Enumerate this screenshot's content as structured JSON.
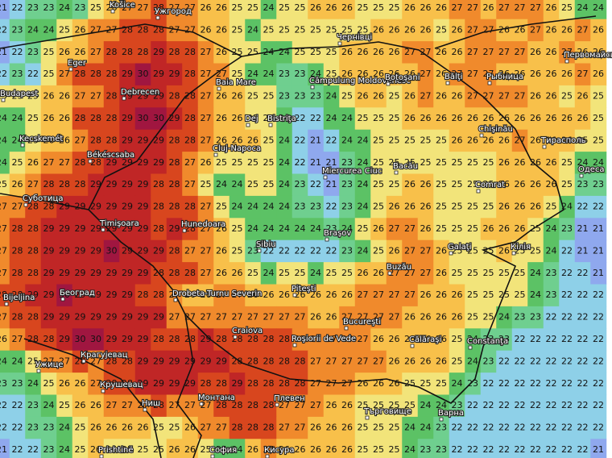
{
  "map": {
    "color_scale": [
      {
        "value": 20,
        "color": "#8c7ad8"
      },
      {
        "value": 21,
        "color": "#8fa8ee"
      },
      {
        "value": 22,
        "color": "#8ed0e8"
      },
      {
        "value": 23,
        "color": "#6fcf8f"
      },
      {
        "value": 24,
        "color": "#5cc265"
      },
      {
        "value": 25,
        "color": "#f2e47a"
      },
      {
        "value": 26,
        "color": "#f8c04a"
      },
      {
        "value": 27,
        "color": "#f08a2c"
      },
      {
        "value": 28,
        "color": "#d8461e"
      },
      {
        "value": 29,
        "color": "#c02626"
      },
      {
        "value": 30,
        "color": "#a01640"
      }
    ],
    "rows": [
      [
        21,
        22,
        23,
        23,
        24,
        23,
        25,
        26,
        27,
        27,
        28,
        27,
        27,
        26,
        26,
        25,
        25,
        24,
        25,
        25,
        26,
        26,
        26,
        25,
        25,
        25,
        26,
        26,
        26,
        27,
        27,
        26,
        27,
        27,
        27,
        26,
        25,
        24,
        24
      ],
      [
        22,
        23,
        24,
        24,
        25,
        26,
        27,
        27,
        28,
        28,
        28,
        27,
        27,
        26,
        26,
        25,
        24,
        25,
        25,
        25,
        25,
        25,
        25,
        25,
        26,
        26,
        26,
        26,
        25,
        26,
        27,
        27,
        26,
        26,
        27,
        26,
        26,
        27,
        26
      ],
      [
        21,
        22,
        23,
        25,
        26,
        26,
        27,
        28,
        28,
        28,
        29,
        28,
        28,
        27,
        26,
        25,
        25,
        24,
        24,
        25,
        25,
        25,
        26,
        26,
        26,
        26,
        27,
        27,
        26,
        26,
        27,
        27,
        27,
        27,
        26,
        26,
        27,
        26,
        26
      ],
      [
        22,
        23,
        22,
        25,
        27,
        28,
        28,
        28,
        29,
        30,
        29,
        29,
        28,
        27,
        27,
        25,
        24,
        24,
        23,
        23,
        24,
        25,
        26,
        26,
        26,
        26,
        26,
        27,
        26,
        27,
        27,
        27,
        26,
        26,
        26,
        26,
        26,
        27,
        26
      ],
      [
        25,
        25,
        25,
        26,
        26,
        27,
        27,
        28,
        29,
        29,
        29,
        28,
        28,
        27,
        26,
        26,
        25,
        25,
        23,
        23,
        23,
        24,
        25,
        26,
        26,
        25,
        26,
        27,
        26,
        26,
        27,
        27,
        27,
        27,
        26,
        26,
        25,
        26,
        25
      ],
      [
        24,
        24,
        25,
        26,
        26,
        28,
        28,
        28,
        29,
        30,
        30,
        29,
        28,
        27,
        26,
        26,
        25,
        25,
        24,
        22,
        22,
        24,
        24,
        25,
        25,
        25,
        26,
        26,
        26,
        26,
        26,
        26,
        26,
        26,
        26,
        26,
        26,
        26,
        25
      ],
      [
        24,
        24,
        25,
        26,
        26,
        27,
        28,
        28,
        29,
        29,
        29,
        28,
        28,
        27,
        26,
        26,
        26,
        25,
        24,
        22,
        21,
        22,
        24,
        24,
        25,
        25,
        25,
        25,
        25,
        26,
        26,
        26,
        26,
        27,
        26,
        26,
        26,
        25,
        25
      ],
      [
        24,
        25,
        26,
        27,
        27,
        28,
        28,
        29,
        29,
        29,
        29,
        28,
        27,
        26,
        25,
        25,
        25,
        25,
        24,
        22,
        21,
        21,
        23,
        24,
        25,
        25,
        25,
        25,
        25,
        25,
        25,
        25,
        26,
        26,
        26,
        26,
        25,
        24,
        24
      ],
      [
        25,
        26,
        27,
        28,
        28,
        28,
        29,
        29,
        29,
        29,
        28,
        28,
        27,
        25,
        24,
        24,
        25,
        25,
        24,
        23,
        22,
        21,
        23,
        24,
        25,
        25,
        26,
        26,
        25,
        25,
        25,
        25,
        26,
        26,
        26,
        26,
        25,
        23,
        23
      ],
      [
        27,
        27,
        28,
        28,
        29,
        29,
        29,
        29,
        29,
        29,
        28,
        28,
        28,
        27,
        25,
        24,
        24,
        24,
        24,
        23,
        23,
        22,
        23,
        24,
        25,
        26,
        26,
        26,
        25,
        25,
        25,
        25,
        26,
        26,
        26,
        25,
        24,
        22,
        22
      ],
      [
        27,
        28,
        28,
        29,
        29,
        29,
        29,
        29,
        29,
        29,
        28,
        29,
        28,
        27,
        26,
        25,
        24,
        24,
        24,
        24,
        24,
        23,
        24,
        25,
        26,
        27,
        27,
        26,
        25,
        25,
        25,
        26,
        26,
        26,
        25,
        24,
        23,
        21,
        21
      ],
      [
        27,
        28,
        28,
        29,
        29,
        29,
        29,
        30,
        29,
        29,
        29,
        28,
        27,
        27,
        26,
        25,
        23,
        22,
        22,
        22,
        22,
        22,
        23,
        24,
        25,
        26,
        27,
        27,
        26,
        25,
        25,
        25,
        26,
        25,
        25,
        24,
        22,
        21,
        21
      ],
      [
        27,
        28,
        28,
        29,
        29,
        29,
        29,
        29,
        29,
        29,
        28,
        28,
        28,
        27,
        26,
        26,
        25,
        24,
        25,
        25,
        24,
        25,
        25,
        26,
        26,
        27,
        27,
        27,
        26,
        25,
        25,
        25,
        25,
        25,
        24,
        23,
        22,
        22,
        21
      ],
      [
        28,
        28,
        29,
        29,
        30,
        29,
        29,
        29,
        29,
        28,
        28,
        27,
        26,
        26,
        27,
        27,
        26,
        26,
        26,
        26,
        26,
        26,
        26,
        27,
        27,
        27,
        27,
        26,
        26,
        26,
        25,
        25,
        25,
        25,
        24,
        23,
        22,
        22,
        22
      ],
      [
        27,
        28,
        28,
        29,
        29,
        29,
        29,
        29,
        29,
        29,
        29,
        27,
        27,
        27,
        27,
        27,
        27,
        27,
        27,
        27,
        26,
        26,
        27,
        27,
        27,
        27,
        26,
        26,
        26,
        26,
        25,
        25,
        24,
        23,
        23,
        22,
        22,
        22,
        22
      ],
      [
        26,
        27,
        28,
        28,
        29,
        30,
        30,
        29,
        29,
        29,
        28,
        28,
        28,
        29,
        28,
        28,
        28,
        28,
        28,
        27,
        27,
        27,
        27,
        27,
        26,
        26,
        26,
        26,
        26,
        25,
        24,
        23,
        23,
        22,
        22,
        22,
        22,
        22,
        22
      ],
      [
        24,
        24,
        25,
        27,
        27,
        28,
        27,
        28,
        28,
        29,
        29,
        29,
        29,
        29,
        29,
        28,
        28,
        28,
        28,
        28,
        27,
        27,
        27,
        27,
        27,
        26,
        26,
        26,
        26,
        25,
        24,
        23,
        22,
        22,
        22,
        22,
        22,
        22,
        22
      ],
      [
        23,
        23,
        24,
        25,
        26,
        26,
        27,
        28,
        28,
        29,
        29,
        29,
        29,
        28,
        28,
        29,
        28,
        28,
        28,
        28,
        27,
        27,
        27,
        26,
        26,
        26,
        25,
        25,
        25,
        24,
        23,
        22,
        22,
        22,
        22,
        22,
        22,
        22,
        22
      ],
      [
        22,
        22,
        23,
        24,
        25,
        26,
        26,
        27,
        27,
        27,
        28,
        27,
        27,
        27,
        28,
        28,
        28,
        28,
        27,
        27,
        27,
        26,
        26,
        25,
        25,
        25,
        25,
        24,
        24,
        23,
        22,
        22,
        22,
        22,
        22,
        22,
        22,
        22,
        22
      ],
      [
        22,
        22,
        23,
        23,
        24,
        25,
        26,
        26,
        26,
        26,
        25,
        25,
        26,
        27,
        27,
        28,
        28,
        28,
        27,
        27,
        26,
        26,
        26,
        25,
        25,
        25,
        24,
        24,
        23,
        22,
        22,
        22,
        22,
        22,
        22,
        22,
        22,
        22,
        22
      ],
      [
        21,
        22,
        22,
        23,
        24,
        25,
        26,
        25,
        25,
        25,
        25,
        26,
        26,
        25,
        24,
        24,
        26,
        27,
        26,
        26,
        26,
        26,
        26,
        25,
        25,
        25,
        24,
        23,
        23,
        22,
        22,
        22,
        22,
        22,
        22,
        22,
        22,
        22,
        21
      ]
    ],
    "cities": [
      "Košice",
      "Ужгород",
      "Чернівці",
      "Eger",
      "Budapest",
      "Debrecen",
      "Baia Mare",
      "Câmpulung Moldovenesc",
      "Botoşani",
      "Bălţi",
      "Рыбница",
      "Первомайськ",
      "Kecskemét",
      "Békéscsaba",
      "Dej",
      "Bistriţa",
      "Cluj-Napoca",
      "Chişinău",
      "Тирасполь",
      "Одеса",
      "Bacău",
      "Miercurea Ciuc",
      "Суботица",
      "Timişoara",
      "Hunedoara",
      "Sibiu",
      "Braşov",
      "Comrat",
      "Galaţi",
      "Кілія",
      "Buzău",
      "Београд",
      "Bijeljina",
      "Drobeta-Turnu Severin",
      "Piteşti",
      "Craiova",
      "Bucureşti",
      "Roşiorii de Vede",
      "Călăraşi",
      "Constanţa",
      "Крагујевац",
      "Ужице",
      "Крушевац",
      "Ниш",
      "Монтана",
      "Плевен",
      "Търговище",
      "Варна",
      "София",
      "Prishtinë",
      "Кисура"
    ]
  }
}
